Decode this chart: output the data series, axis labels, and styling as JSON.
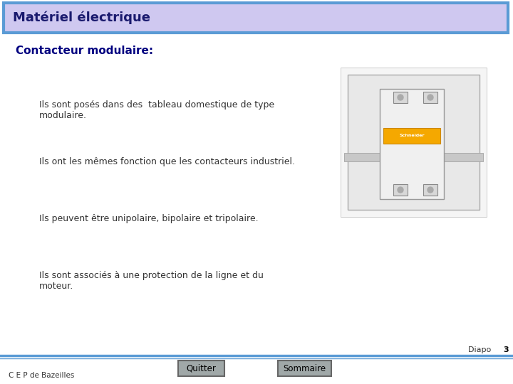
{
  "title": "Matériel électrique",
  "subtitle": "Contacteur modulaire:",
  "bullet1_line1": "Ils sont posés dans des  tableau domestique de type",
  "bullet1_line2": "modulaire.",
  "bullet2": "Ils ont les mêmes fonction que les contacteurs industriel.",
  "bullet3": "Ils peuvent être unipolaire, bipolaire et tripolaire.",
  "bullet4_line1": "Ils sont associés à une protection de la ligne et du",
  "bullet4_line2": "moteur.",
  "footer_left": "C E P de Bazeilles",
  "footer_btn1": "Quitter",
  "footer_btn2": "Sommaire",
  "footer_diapo": "Diapo ",
  "footer_diapo_num": "3",
  "title_bg": "#cfc8f0",
  "title_border": "#5b9bd5",
  "title_text_color": "#1a1a6e",
  "bg_color": "#ffffff",
  "btn_bg": "#a0a8a8",
  "btn_text": "#000000",
  "line_color": "#5b9bd5",
  "subtitle_color": "#000080",
  "body_text_color": "#333333",
  "footer_text_color": "#333333",
  "diapo_bold_color": "#000000"
}
